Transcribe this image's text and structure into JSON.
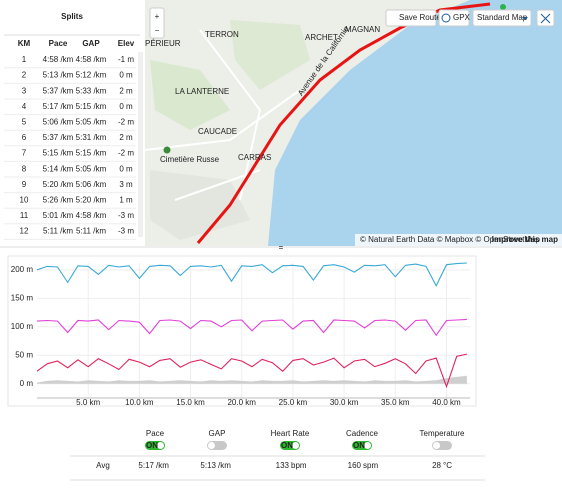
{
  "splits": {
    "title": "Splits",
    "columns": [
      "KM",
      "Pace",
      "GAP",
      "Elev"
    ],
    "rows": [
      [
        "1",
        "4:58 /km",
        "4:58 /km",
        "-1 m"
      ],
      [
        "2",
        "5:13 /km",
        "5:12 /km",
        "0 m"
      ],
      [
        "3",
        "5:37 /km",
        "5:33 /km",
        "2 m"
      ],
      [
        "4",
        "5:17 /km",
        "5:15 /km",
        "0 m"
      ],
      [
        "5",
        "5:06 /km",
        "5:05 /km",
        "-2 m"
      ],
      [
        "6",
        "5:37 /km",
        "5:31 /km",
        "2 m"
      ],
      [
        "7",
        "5:15 /km",
        "5:15 /km",
        "-2 m"
      ],
      [
        "8",
        "5:14 /km",
        "5:05 /km",
        "0 m"
      ],
      [
        "9",
        "5:20 /km",
        "5:06 /km",
        "3 m"
      ],
      [
        "10",
        "5:26 /km",
        "5:20 /km",
        "1 m"
      ],
      [
        "11",
        "5:01 /km",
        "4:58 /km",
        "-3 m"
      ],
      [
        "12",
        "5:11 /km",
        "5:11 /km",
        "-3 m"
      ]
    ]
  },
  "map": {
    "buttons": {
      "save": "Save Route",
      "gpx": "GPX",
      "style": "Standard Map"
    },
    "labels": [
      "TERRON",
      "ARCHET",
      "MAGNAN",
      "PÉRIEUR",
      "LA LANTERNE",
      "CAUCADE",
      "Cimetière Russe",
      "CARRAS",
      "Avenue de la Californie"
    ],
    "attribution": "© Natural Earth Data © Mapbox © OpenStreetMap",
    "improve": "Improve this map"
  },
  "chart_data": {
    "type": "line",
    "x": [
      0,
      1,
      2,
      3,
      4,
      5,
      6,
      7,
      8,
      9,
      10,
      11,
      12,
      13,
      14,
      15,
      16,
      17,
      18,
      19,
      20,
      21,
      22,
      23,
      24,
      25,
      26,
      27,
      28,
      29,
      30,
      31,
      32,
      33,
      34,
      35,
      36,
      37,
      38,
      39,
      40,
      41,
      42
    ],
    "xlim": [
      0,
      42.3
    ],
    "xticks": [
      {
        "value": 5,
        "label": "5.0 km"
      },
      {
        "value": 10,
        "label": "10.0 km"
      },
      {
        "value": 15,
        "label": "15.0 km"
      },
      {
        "value": 20,
        "label": "20.0 km"
      },
      {
        "value": 25,
        "label": "25.0 km"
      },
      {
        "value": 30,
        "label": "30.0 km"
      },
      {
        "value": 35,
        "label": "35.0 km"
      },
      {
        "value": 40,
        "label": "40.0 km"
      }
    ],
    "ylim": [
      -25,
      212
    ],
    "yticks": [
      {
        "value": 0,
        "label": "0 m"
      },
      {
        "value": 50,
        "label": "50 m"
      },
      {
        "value": 100,
        "label": "100 m"
      },
      {
        "value": 150,
        "label": "150 m"
      },
      {
        "value": 200,
        "label": "200 m"
      }
    ],
    "grid": true,
    "series": [
      {
        "color": "#3aa9d6",
        "values": [
          200,
          206,
          205,
          178,
          207,
          206,
          192,
          208,
          205,
          207,
          185,
          206,
          208,
          207,
          190,
          206,
          207,
          205,
          208,
          180,
          207,
          206,
          209,
          195,
          207,
          208,
          206,
          182,
          207,
          209,
          205,
          196,
          208,
          207,
          209,
          188,
          208,
          210,
          206,
          172,
          209,
          211,
          212
        ]
      },
      {
        "color": "#e23fd6",
        "values": [
          110,
          111,
          110,
          90,
          111,
          110,
          112,
          95,
          111,
          110,
          108,
          88,
          111,
          112,
          110,
          97,
          111,
          110,
          100,
          111,
          112,
          93,
          110,
          111,
          112,
          96,
          110,
          111,
          90,
          112,
          111,
          110,
          98,
          111,
          112,
          110,
          94,
          111,
          112,
          85,
          111,
          112,
          113
        ]
      },
      {
        "color": "#e0245e",
        "values": [
          22,
          35,
          40,
          28,
          42,
          30,
          44,
          35,
          25,
          43,
          38,
          30,
          41,
          44,
          29,
          38,
          42,
          34,
          26,
          44,
          40,
          30,
          43,
          37,
          22,
          41,
          44,
          33,
          38,
          45,
          28,
          40,
          43,
          30,
          36,
          44,
          35,
          18,
          40,
          45,
          -5,
          48,
          52
        ]
      },
      {
        "color": "#cfcfcf",
        "area": true,
        "values": [
          2,
          5,
          6,
          5,
          4,
          6,
          5,
          4,
          6,
          5,
          5,
          6,
          4,
          5,
          6,
          5,
          4,
          6,
          5,
          6,
          5,
          4,
          6,
          5,
          5,
          6,
          4,
          5,
          6,
          5,
          6,
          5,
          4,
          6,
          5,
          5,
          6,
          4,
          5,
          6,
          10,
          12,
          14
        ]
      }
    ]
  },
  "summary": {
    "toggle_text": "ON",
    "avg_label": "Avg",
    "metrics": [
      {
        "label": "Pace",
        "on": true,
        "value": "5:17",
        "unit": "/km"
      },
      {
        "label": "GAP",
        "on": false,
        "value": "5:13",
        "unit": "/km"
      },
      {
        "label": "Heart Rate",
        "on": true,
        "value": "133",
        "unit": "bpm"
      },
      {
        "label": "Cadence",
        "on": true,
        "value": "160",
        "unit": "spm"
      },
      {
        "label": "Temperature",
        "on": false,
        "value": "28",
        "unit": "°C"
      }
    ]
  }
}
